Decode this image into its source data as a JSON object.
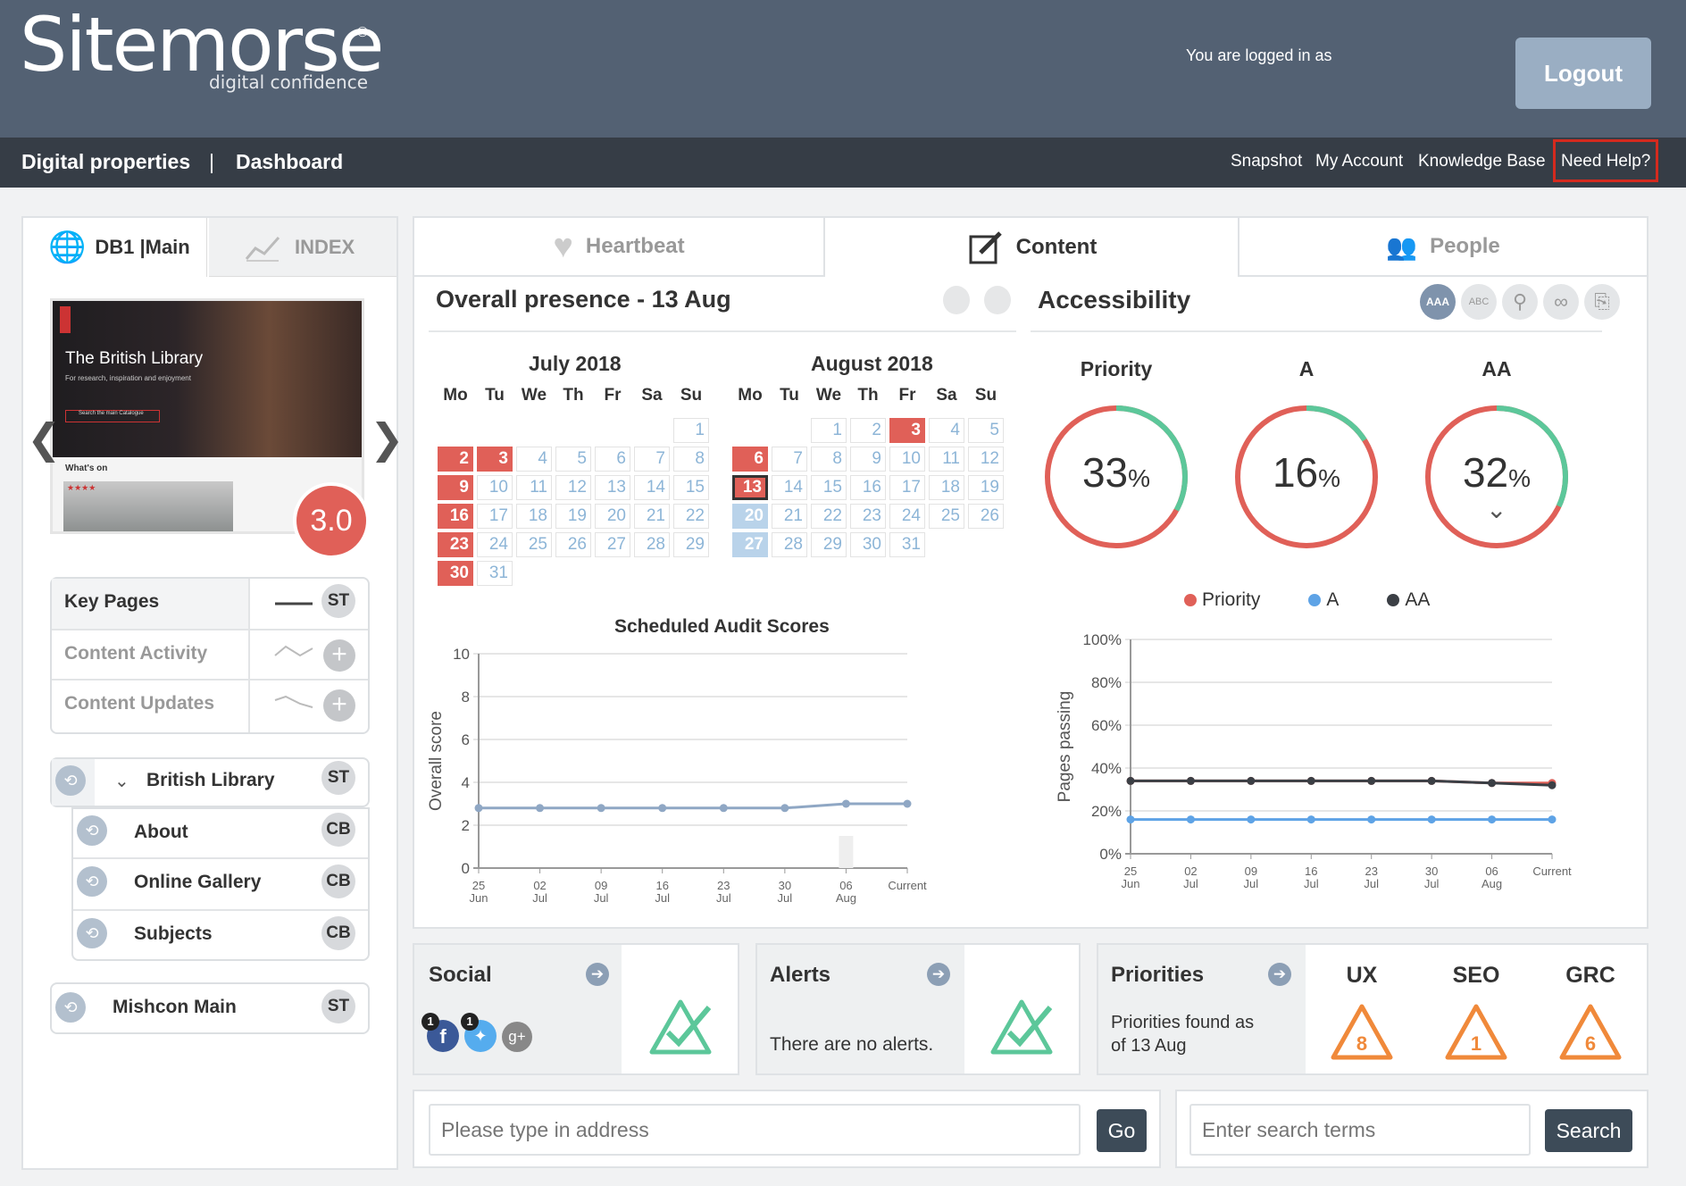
{
  "header": {
    "logo": "Sitemorse",
    "logo_sub": "digital confidence",
    "logo_reg": "®",
    "logged_in": "You are logged in as",
    "logout": "Logout"
  },
  "nav": {
    "left": [
      "Digital properties",
      "|",
      "Dashboard"
    ],
    "right": [
      "Snapshot",
      "My Account",
      "Knowledge Base",
      "Need Help?"
    ]
  },
  "left": {
    "tabs": [
      "DB1 |Main",
      "INDEX"
    ],
    "preview": {
      "title": "The British Library",
      "subtitle": "For research, inspiration and enjoyment",
      "whats_on": "What's on",
      "search_btn": "Search the main Catalogue",
      "rating_stars": "★★★★",
      "score": "3.0"
    },
    "arrows": [
      "❮",
      "❯"
    ],
    "key_rows": [
      {
        "label": "Key Pages",
        "badge": "ST"
      },
      {
        "label": "Content Activity",
        "badge": "+"
      },
      {
        "label": "Content Updates",
        "badge": "+"
      }
    ],
    "site": {
      "label": "British Library",
      "badge": "ST",
      "children": [
        {
          "label": "About",
          "badge": "CB"
        },
        {
          "label": "Online Gallery",
          "badge": "CB"
        },
        {
          "label": "Subjects",
          "badge": "CB"
        }
      ]
    },
    "site2": {
      "label": "Mishcon Main",
      "badge": "ST"
    }
  },
  "main": {
    "tabs": [
      "Heartbeat",
      "Content",
      "People"
    ],
    "overall_title": "Overall presence - 13 Aug",
    "days": [
      "Mo",
      "Tu",
      "We",
      "Th",
      "Fr",
      "Sa",
      "Su"
    ],
    "july": {
      "title": "July 2018",
      "start_col": 6,
      "days": 31,
      "red": [
        2,
        3,
        9,
        16,
        23,
        30
      ],
      "blue": [],
      "sel": []
    },
    "august": {
      "title": "August 2018",
      "start_col": 2,
      "days": 31,
      "red": [
        3,
        6
      ],
      "blue": [
        20,
        27
      ],
      "sel": [
        13
      ]
    },
    "accessibility": {
      "title": "Accessibility",
      "icons": [
        "AAA",
        "ABC"
      ],
      "gauges": [
        {
          "label": "Priority",
          "value": 33,
          "unit": "%"
        },
        {
          "label": "A",
          "value": 16,
          "unit": "%"
        },
        {
          "label": "AA",
          "value": 32,
          "unit": "%"
        }
      ],
      "legend": [
        "Priority",
        "A",
        "AA"
      ]
    }
  },
  "chart_data": [
    {
      "type": "line",
      "title": "Scheduled Audit Scores",
      "ylabel": "Overall score",
      "xlabel": "",
      "ylim": [
        0,
        10
      ],
      "yticks": [
        0,
        2,
        4,
        6,
        8,
        10
      ],
      "x": [
        [
          "25",
          "Jun"
        ],
        [
          "02",
          "Jul"
        ],
        [
          "09",
          "Jul"
        ],
        [
          "16",
          "Jul"
        ],
        [
          "23",
          "Jul"
        ],
        [
          "30",
          "Jul"
        ],
        [
          "06",
          "Aug"
        ],
        [
          "Current",
          ""
        ]
      ],
      "series": [
        {
          "values": [
            2.8,
            2.8,
            2.8,
            2.8,
            2.8,
            2.8,
            3.0,
            3.0
          ]
        }
      ]
    },
    {
      "type": "line",
      "title": "",
      "ylabel": "Pages passing",
      "xlabel": "",
      "ylim": [
        0,
        100
      ],
      "yticks": [
        "0%",
        "20%",
        "40%",
        "60%",
        "80%",
        "100%"
      ],
      "x": [
        [
          "25",
          "Jun"
        ],
        [
          "02",
          "Jul"
        ],
        [
          "09",
          "Jul"
        ],
        [
          "16",
          "Jul"
        ],
        [
          "23",
          "Jul"
        ],
        [
          "30",
          "Jul"
        ],
        [
          "06",
          "Aug"
        ],
        [
          "Current",
          ""
        ]
      ],
      "series": [
        {
          "name": "Priority",
          "color": "#e06058",
          "values": [
            34,
            34,
            34,
            34,
            34,
            34,
            33,
            33
          ]
        },
        {
          "name": "A",
          "color": "#5ea3e6",
          "values": [
            16,
            16,
            16,
            16,
            16,
            16,
            16,
            16
          ]
        },
        {
          "name": "AA",
          "color": "#3b3f45",
          "values": [
            34,
            34,
            34,
            34,
            34,
            34,
            33,
            32
          ]
        }
      ]
    }
  ],
  "cards": {
    "social": {
      "title": "Social",
      "badges": [
        "1",
        "1"
      ],
      "gplus": "g+"
    },
    "alerts": {
      "title": "Alerts",
      "text": "There are no alerts."
    },
    "priorities": {
      "title": "Priorities",
      "text1": "Priorities found as",
      "text2": "of 13 Aug",
      "items": [
        {
          "label": "UX",
          "value": "8"
        },
        {
          "label": "SEO",
          "value": "1"
        },
        {
          "label": "GRC",
          "value": "6"
        }
      ]
    }
  },
  "search": {
    "address_placeholder": "Please type in address",
    "go": "Go",
    "terms_placeholder": "Enter search terms",
    "search": "Search"
  },
  "colors": {
    "header": "#536173",
    "nav": "#363d46",
    "red": "#e06058",
    "green": "#5cc79a",
    "orange": "#f0893a"
  }
}
